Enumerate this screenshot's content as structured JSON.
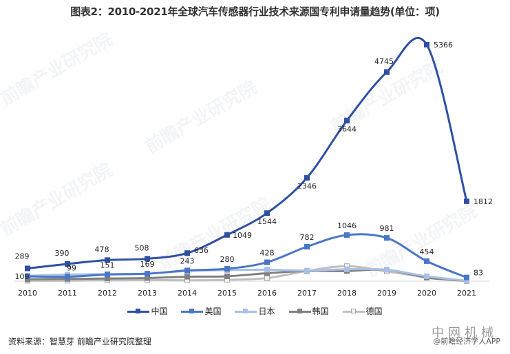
{
  "title": "图表2：2010-2021年全球汽车传感器行业技术来源国专利申请量趋势(单位：项)",
  "source": "资料来源：智慧芽 前瞻产业研究院整理",
  "credit": "@前瞻经济学人APP",
  "corner_watermark": "中网机械",
  "watermark_text": "前瞻产业研究院",
  "chart_data": {
    "type": "line",
    "title": "图表2：2010-2021年全球汽车传感器行业技术来源国专利申请量趋势(单位：项)",
    "xlabel": "",
    "ylabel": "",
    "categories": [
      "2010",
      "2011",
      "2012",
      "2013",
      "2014",
      "2015",
      "2016",
      "2017",
      "2018",
      "2019",
      "2020",
      "2021"
    ],
    "ylim": [
      0,
      5400
    ],
    "grid": false,
    "legend_position": "bottom",
    "smooth": true,
    "series": [
      {
        "name": "中国",
        "color": "#2E4FA3",
        "marker": "square",
        "labeled": true,
        "values": [
          289,
          390,
          478,
          508,
          636,
          1049,
          1544,
          2346,
          3644,
          4745,
          5366,
          1812
        ]
      },
      {
        "name": "美国",
        "color": "#4A76C6",
        "marker": "square",
        "labeled": true,
        "values": [
          109,
          99,
          151,
          169,
          243,
          280,
          428,
          782,
          1046,
          981,
          454,
          83
        ]
      },
      {
        "name": "日本",
        "color": "#A9C0E6",
        "marker": "square",
        "labeled": false,
        "values": [
          120,
          150,
          160,
          170,
          230,
          250,
          260,
          240,
          270,
          260,
          110,
          10
        ]
      },
      {
        "name": "韩国",
        "color": "#7F7F7F",
        "marker": "square",
        "labeled": false,
        "values": [
          40,
          50,
          60,
          70,
          100,
          110,
          180,
          230,
          230,
          260,
          80,
          5
        ]
      },
      {
        "name": "德国",
        "color": "#BFBFBF",
        "marker": "square-hollow",
        "labeled": false,
        "values": [
          10,
          10,
          20,
          25,
          20,
          30,
          70,
          230,
          340,
          220,
          90,
          5
        ]
      }
    ]
  },
  "legend": [
    {
      "label": "中国",
      "color": "#2E4FA3",
      "fill": "#2E4FA3"
    },
    {
      "label": "美国",
      "color": "#4A76C6",
      "fill": "#4A76C6"
    },
    {
      "label": "日本",
      "color": "#A9C0E6",
      "fill": "#A9C0E6"
    },
    {
      "label": "韩国",
      "color": "#7F7F7F",
      "fill": "#7F7F7F"
    },
    {
      "label": "德国",
      "color": "#BFBFBF",
      "fill": "#F2F2F2"
    }
  ]
}
